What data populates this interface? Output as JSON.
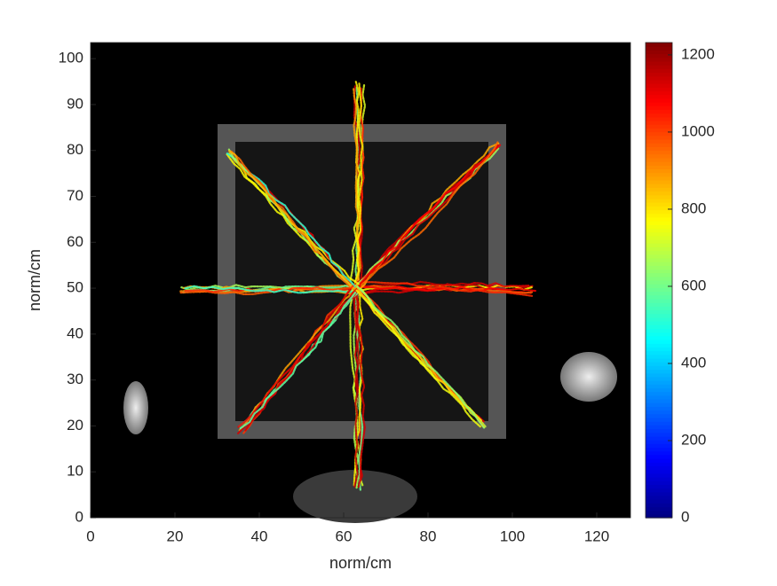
{
  "chart_data": {
    "type": "image",
    "xlabel": "norm/cm",
    "ylabel": "norm/cm",
    "xlim": [
      0,
      128
    ],
    "ylim": [
      0,
      103.5
    ],
    "xticks": [
      0,
      20,
      40,
      60,
      80,
      100,
      120
    ],
    "yticks": [
      0,
      10,
      20,
      30,
      40,
      50,
      60,
      70,
      80,
      90,
      100
    ],
    "colorbar": {
      "colormap": "jet",
      "lim": [
        0,
        1232
      ],
      "ticks": [
        0,
        200,
        400,
        600,
        800,
        1000,
        1200
      ]
    }
  }
}
